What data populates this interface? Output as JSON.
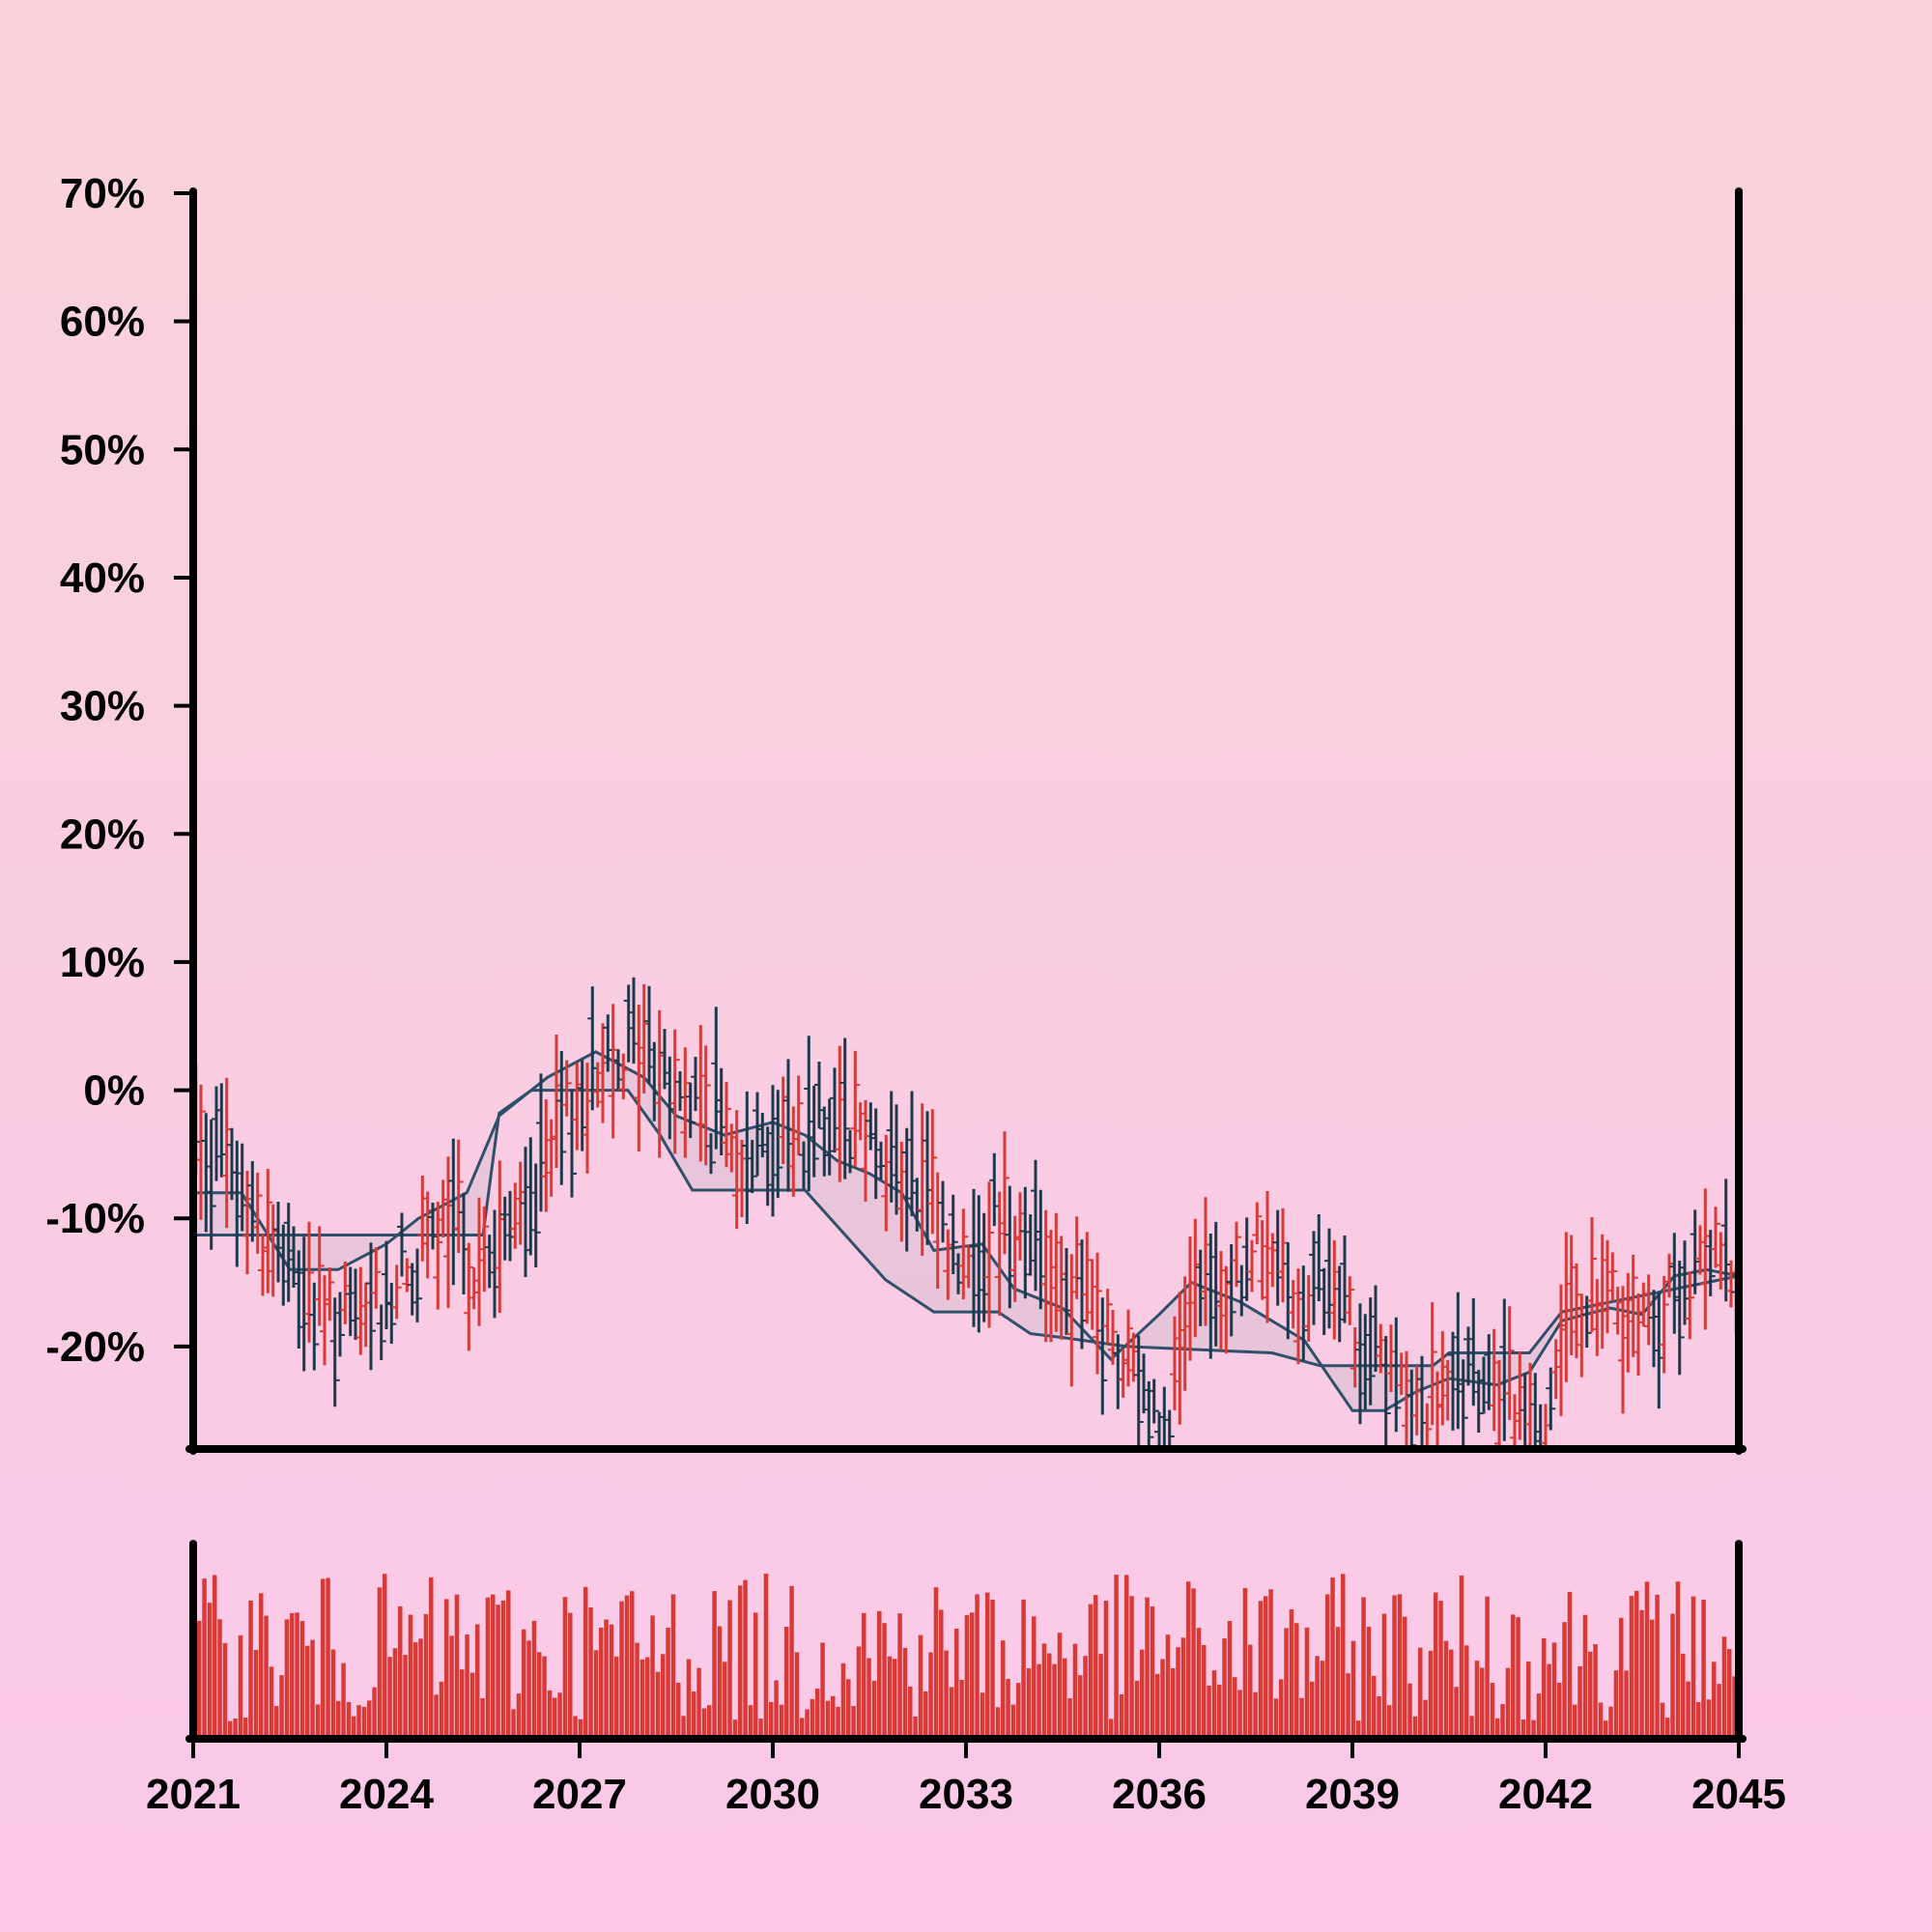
{
  "chart_data": {
    "type": "ohlc",
    "title": "",
    "xlabel": "",
    "ylabel": "",
    "x_range": [
      "2021-01",
      "2045-01"
    ],
    "ylim": [
      -28,
      70
    ],
    "y_ticks": [
      70,
      60,
      50,
      40,
      30,
      20,
      10,
      0,
      -10,
      -20
    ],
    "y_tick_labels": [
      "70%",
      "60%",
      "50%",
      "40%",
      "30%",
      "20%",
      "10%",
      "0%",
      "-10%",
      "-20%"
    ],
    "x_ticks": [
      2021,
      2024,
      2027,
      2030,
      2033,
      2036,
      2039,
      2042,
      2045
    ],
    "x_tick_labels": [
      "2021",
      "2024",
      "2027",
      "2030",
      "2033",
      "2036",
      "2039",
      "2042",
      "2045"
    ],
    "close_path": [
      [
        "2021-01",
        -3
      ],
      [
        "2021-07",
        -6
      ],
      [
        "2022-01",
        -10
      ],
      [
        "2022-07",
        -14
      ],
      [
        "2023-01",
        -18
      ],
      [
        "2023-07",
        -19
      ],
      [
        "2024-01",
        -16
      ],
      [
        "2024-07",
        -13
      ],
      [
        "2025-01",
        -11
      ],
      [
        "2025-07",
        -14
      ],
      [
        "2026-01",
        -11
      ],
      [
        "2026-07",
        -6
      ],
      [
        "2027-01",
        -1
      ],
      [
        "2027-07",
        4
      ],
      [
        "2028-01",
        3
      ],
      [
        "2028-07",
        0
      ],
      [
        "2029-01",
        -2
      ],
      [
        "2029-07",
        -4
      ],
      [
        "2030-01",
        -4
      ],
      [
        "2030-07",
        -3
      ],
      [
        "2031-01",
        -1
      ],
      [
        "2031-07",
        -3
      ],
      [
        "2032-01",
        -7
      ],
      [
        "2032-07",
        -9
      ],
      [
        "2033-01",
        -14
      ],
      [
        "2033-07",
        -10
      ],
      [
        "2034-01",
        -11
      ],
      [
        "2034-07",
        -14
      ],
      [
        "2035-01",
        -18
      ],
      [
        "2035-07",
        -22
      ],
      [
        "2036-01",
        -26
      ],
      [
        "2036-07",
        -18
      ],
      [
        "2037-01",
        -15
      ],
      [
        "2037-07",
        -13
      ],
      [
        "2038-01",
        -15
      ],
      [
        "2038-07",
        -16
      ],
      [
        "2039-01",
        -18
      ],
      [
        "2039-07",
        -22
      ],
      [
        "2040-01",
        -26
      ],
      [
        "2040-07",
        -24
      ],
      [
        "2041-01",
        -23
      ],
      [
        "2041-07",
        -25
      ],
      [
        "2042-01",
        -26
      ],
      [
        "2042-07",
        -16
      ],
      [
        "2043-01",
        -17
      ],
      [
        "2043-07",
        -18
      ],
      [
        "2044-01",
        -16
      ],
      [
        "2044-07",
        -14
      ],
      [
        "2045-01",
        -14
      ]
    ],
    "channel_upper": [
      [
        "2021-01",
        -8
      ],
      [
        "2021-10",
        -8
      ],
      [
        "2022-07",
        -14
      ],
      [
        "2023-04",
        -14
      ],
      [
        "2024-01",
        -12
      ],
      [
        "2024-07",
        -10
      ],
      [
        "2025-04",
        -8
      ],
      [
        "2025-10",
        -2
      ],
      [
        "2026-07",
        1
      ],
      [
        "2027-04",
        3
      ],
      [
        "2028-01",
        1
      ],
      [
        "2028-07",
        -2
      ],
      [
        "2029-04",
        -3.5
      ],
      [
        "2030-01",
        -2.5
      ],
      [
        "2030-07",
        -3.5
      ],
      [
        "2031-01",
        -5.5
      ],
      [
        "2031-07",
        -6.5
      ],
      [
        "2032-01",
        -8
      ],
      [
        "2032-07",
        -12.5
      ],
      [
        "2033-04",
        -12
      ],
      [
        "2033-10",
        -15.5
      ],
      [
        "2034-07",
        -17
      ],
      [
        "2035-04",
        -21
      ],
      [
        "2036-01",
        -17.5
      ],
      [
        "2036-07",
        -15
      ],
      [
        "2037-04",
        -16.5
      ],
      [
        "2037-10",
        -18
      ],
      [
        "2038-04",
        -19.5
      ],
      [
        "2039-01",
        -25
      ],
      [
        "2039-07",
        -25
      ],
      [
        "2040-01",
        -23.5
      ],
      [
        "2040-07",
        -22.5
      ],
      [
        "2041-04",
        -23
      ],
      [
        "2041-10",
        -22
      ],
      [
        "2042-04",
        -18
      ],
      [
        "2043-01",
        -17
      ],
      [
        "2043-07",
        -17.5
      ],
      [
        "2044-01",
        -14.5
      ],
      [
        "2044-07",
        -14
      ],
      [
        "2045-01",
        -14.5
      ]
    ],
    "channel_lower": [
      [
        "2021-01",
        -11.3
      ],
      [
        "2025-07",
        -11.3
      ],
      [
        "2025-10",
        -1.8
      ],
      [
        "2026-04",
        0
      ],
      [
        "2027-10",
        0
      ],
      [
        "2028-04",
        -3.5
      ],
      [
        "2028-10",
        -7.8
      ],
      [
        "2030-07",
        -7.8
      ],
      [
        "2031-04",
        -12
      ],
      [
        "2031-10",
        -14.8
      ],
      [
        "2032-07",
        -17.3
      ],
      [
        "2033-07",
        -17.3
      ],
      [
        "2034-01",
        -19
      ],
      [
        "2034-07",
        -19.3
      ],
      [
        "2035-07",
        -20
      ],
      [
        "2037-10",
        -20.5
      ],
      [
        "2038-07",
        -21.5
      ],
      [
        "2040-04",
        -21.5
      ],
      [
        "2040-07",
        -20.5
      ],
      [
        "2041-10",
        -20.5
      ],
      [
        "2042-04",
        -17.3
      ],
      [
        "2045-01",
        -14.5
      ]
    ],
    "volume_ylim": [
      0,
      100
    ]
  },
  "colors": {
    "up_bar": "#d93a36",
    "down_bar": "#1d3a4c",
    "channel_line": "#2f4f6a",
    "channel_fill": "#e4c3d8",
    "volume_bar": "#d93a36",
    "axis": "#000000"
  }
}
